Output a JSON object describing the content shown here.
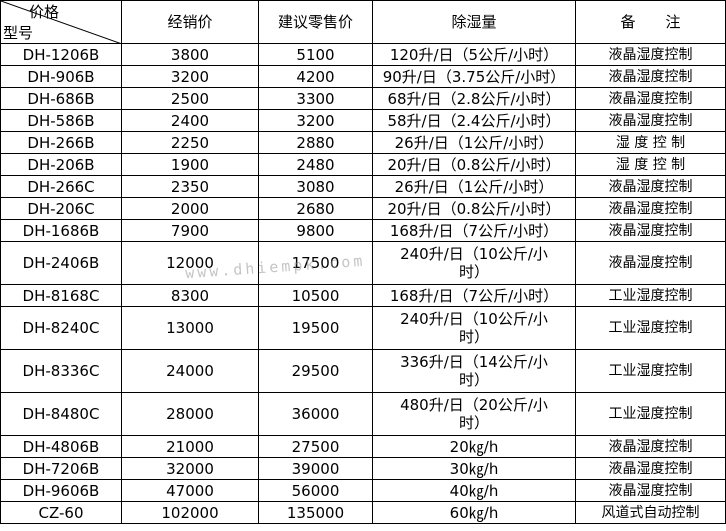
{
  "header": {
    "corner_top": "价格",
    "corner_bottom": "型号",
    "dealer_price": "经销价",
    "retail_price": "建议零售价",
    "dehumidify": "除湿量",
    "remark": "备　　注"
  },
  "rows": [
    {
      "model": "DH-1206B",
      "dealer": "3800",
      "retail": "5100",
      "capacity": "120升/日（5公斤/小时）",
      "remark": "液晶湿度控制"
    },
    {
      "model": "DH-906B",
      "dealer": "3200",
      "retail": "4200",
      "capacity": "90升/日（3.75公斤/小时）",
      "remark": "液晶湿度控制"
    },
    {
      "model": "DH-686B",
      "dealer": "2500",
      "retail": "3300",
      "capacity": "68升/日（2.8公斤/小时）",
      "remark": "液晶湿度控制"
    },
    {
      "model": "DH-586B",
      "dealer": "2400",
      "retail": "3200",
      "capacity": "58升/日（2.4公斤/小时）",
      "remark": "液晶湿度控制"
    },
    {
      "model": "DH-266B",
      "dealer": "2250",
      "retail": "2880",
      "capacity": "26升/日（1公斤/小时）",
      "remark": "湿 度 控 制"
    },
    {
      "model": "DH-206B",
      "dealer": "1900",
      "retail": "2480",
      "capacity": "20升/日（0.8公斤/小时）",
      "remark": "湿 度 控 制"
    },
    {
      "model": "DH-266C",
      "dealer": "2350",
      "retail": "3080",
      "capacity": "26升/日（1公斤/小时）",
      "remark": "液晶湿度控制"
    },
    {
      "model": "DH-206C",
      "dealer": "2000",
      "retail": "2680",
      "capacity": "20升/日（0.8公斤/小时）",
      "remark": "液晶湿度控制"
    },
    {
      "model": "DH-1686B",
      "dealer": "7900",
      "retail": "9800",
      "capacity": "168升/日（7公斤/小时）",
      "remark": "液晶湿度控制"
    },
    {
      "model": "DH-2406B",
      "dealer": "12000",
      "retail": "17500",
      "capacity": "240升/日（10公斤/小时）",
      "remark": "液晶湿度控制"
    },
    {
      "model": "DH-8168C",
      "dealer": "8300",
      "retail": "10500",
      "capacity": "168升/日（7公斤/小时）",
      "remark": "工业湿度控制"
    },
    {
      "model": "DH-8240C",
      "dealer": "13000",
      "retail": "19500",
      "capacity": "240升/日（10公斤/小时）",
      "remark": "工业湿度控制"
    },
    {
      "model": "DH-8336C",
      "dealer": "24000",
      "retail": "29500",
      "capacity": "336升/日（14公斤/小时）",
      "remark": "工业湿度控制"
    },
    {
      "model": "DH-8480C",
      "dealer": "28000",
      "retail": "36000",
      "capacity": "480升/日（20公斤/小时）",
      "remark": "工业湿度控制"
    },
    {
      "model": "DH-4806B",
      "dealer": "21000",
      "retail": "27500",
      "capacity": "20㎏/h",
      "remark": "液晶湿度控制"
    },
    {
      "model": "DH-7206B",
      "dealer": "32000",
      "retail": "39000",
      "capacity": "30㎏/h",
      "remark": "液晶湿度控制"
    },
    {
      "model": "DH-9606B",
      "dealer": "47000",
      "retail": "56000",
      "capacity": "40㎏/h",
      "remark": "液晶湿度控制"
    },
    {
      "model": "CZ-60",
      "dealer": "102000",
      "retail": "135000",
      "capacity": "60㎏/h",
      "remark": "风道式自动控制"
    }
  ],
  "watermark": "www.dhiempk.com"
}
